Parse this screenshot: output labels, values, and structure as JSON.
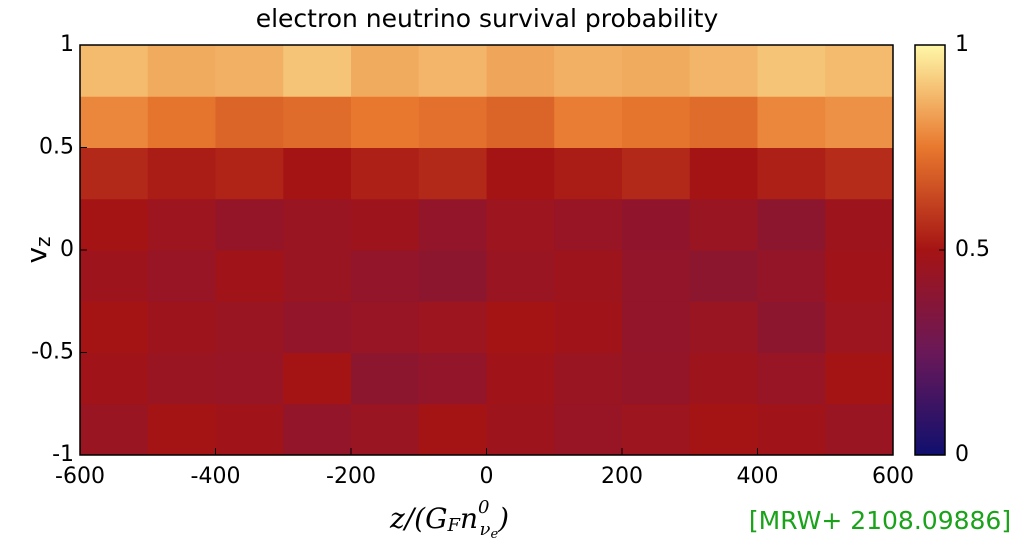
{
  "chart_data": {
    "type": "heatmap",
    "title": "electron neutrino survival probability",
    "xlabel_parts": [
      "z/(G",
      "F",
      "n",
      "0",
      "ν",
      "e",
      ")"
    ],
    "ylabel_parts": [
      "v",
      "z"
    ],
    "annotation": "[MRW+ 2108.09886]",
    "annotation_color": "#1aa31a",
    "xbins": [
      -600,
      -500,
      -400,
      -300,
      -200,
      -100,
      0,
      100,
      200,
      300,
      400,
      500,
      600
    ],
    "ybins": [
      -1,
      -0.75,
      -0.5,
      -0.25,
      0,
      0.25,
      0.5,
      0.75,
      1
    ],
    "values": [
      [
        0.45,
        0.5,
        0.48,
        0.42,
        0.45,
        0.5,
        0.47,
        0.44,
        0.46,
        0.5,
        0.48,
        0.45
      ],
      [
        0.48,
        0.45,
        0.44,
        0.5,
        0.4,
        0.42,
        0.48,
        0.45,
        0.43,
        0.47,
        0.44,
        0.5
      ],
      [
        0.5,
        0.47,
        0.45,
        0.42,
        0.44,
        0.46,
        0.5,
        0.48,
        0.42,
        0.45,
        0.4,
        0.46
      ],
      [
        0.47,
        0.44,
        0.48,
        0.45,
        0.42,
        0.4,
        0.45,
        0.47,
        0.42,
        0.4,
        0.43,
        0.48
      ],
      [
        0.5,
        0.46,
        0.43,
        0.45,
        0.47,
        0.42,
        0.46,
        0.44,
        0.41,
        0.45,
        0.4,
        0.47
      ],
      [
        0.55,
        0.52,
        0.54,
        0.5,
        0.53,
        0.55,
        0.5,
        0.52,
        0.55,
        0.5,
        0.53,
        0.56
      ],
      [
        0.78,
        0.74,
        0.7,
        0.72,
        0.75,
        0.73,
        0.7,
        0.76,
        0.74,
        0.72,
        0.78,
        0.8
      ],
      [
        0.88,
        0.85,
        0.86,
        0.9,
        0.85,
        0.87,
        0.84,
        0.86,
        0.85,
        0.87,
        0.9,
        0.88
      ]
    ],
    "xlim": [
      -600,
      600
    ],
    "xticks": [
      -600,
      -400,
      -200,
      0,
      200,
      400,
      600
    ],
    "ylim": [
      -1,
      1
    ],
    "yticks": [
      -1,
      -0.5,
      0,
      0.5,
      1
    ],
    "clim": [
      0,
      1
    ],
    "cticks": [
      0,
      0.5,
      1
    ],
    "colormap": [
      "#10106e",
      "#6a1858",
      "#a51414",
      "#e8782e",
      "#fff7a8"
    ]
  }
}
